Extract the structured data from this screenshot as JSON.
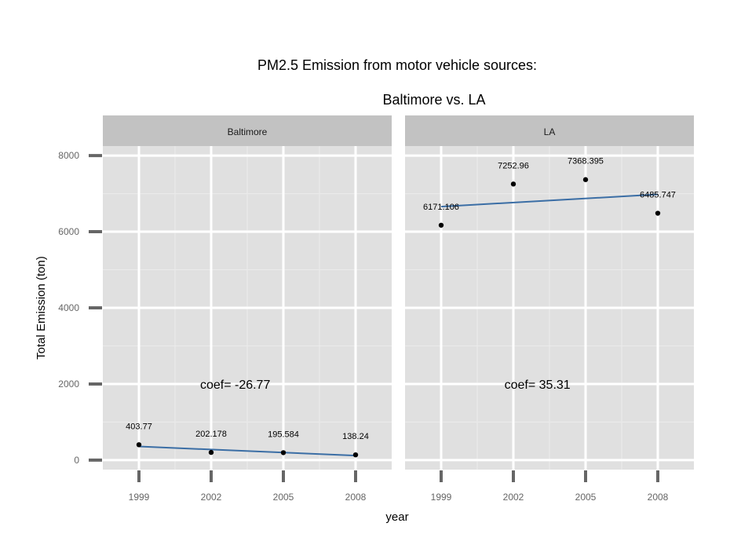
{
  "chart_data": {
    "type": "scatter",
    "title_line1": "PM2.5 Emission from motor vehicle sources:",
    "title_line2": "Baltimore vs. LA",
    "xlabel": "year",
    "ylabel": "Total Emission (ton)",
    "x_ticks": [
      1999,
      2002,
      2005,
      2008
    ],
    "y_ticks": [
      0,
      2000,
      4000,
      6000,
      8000
    ],
    "xlim": [
      1997.5,
      2009.5
    ],
    "ylim": [
      -250,
      8250
    ],
    "grid": true,
    "panels": [
      {
        "name": "Baltimore",
        "x": [
          1999,
          2002,
          2005,
          2008
        ],
        "y": [
          403.77,
          202.178,
          195.584,
          138.24
        ],
        "labels": [
          "403.77",
          "202.178",
          "195.584",
          "138.24"
        ],
        "trend": [
          [
            1999,
            358
          ],
          [
            2008,
            118
          ]
        ],
        "coef_label": "coef= -26.77",
        "coef_pos": [
          2003,
          2000
        ]
      },
      {
        "name": "LA",
        "x": [
          1999,
          2002,
          2005,
          2008
        ],
        "y": [
          6171.106,
          7252.96,
          7368.395,
          6485.747
        ],
        "labels": [
          "6171.106",
          "7252.96",
          "7368.395",
          "6485.747"
        ],
        "trend": [
          [
            1999,
            6660
          ],
          [
            2008,
            6980
          ]
        ],
        "coef_label": "coef= 35.31",
        "coef_pos": [
          2003,
          2000
        ]
      }
    ],
    "colors": {
      "panel_bg": "#e0e0e0",
      "strip_bg": "#c2c2c2",
      "grid_major": "#ffffff",
      "grid_minor": "#ebebeb",
      "tick": "#666666",
      "point": "#000000",
      "trend": "#3b6ea5"
    }
  }
}
